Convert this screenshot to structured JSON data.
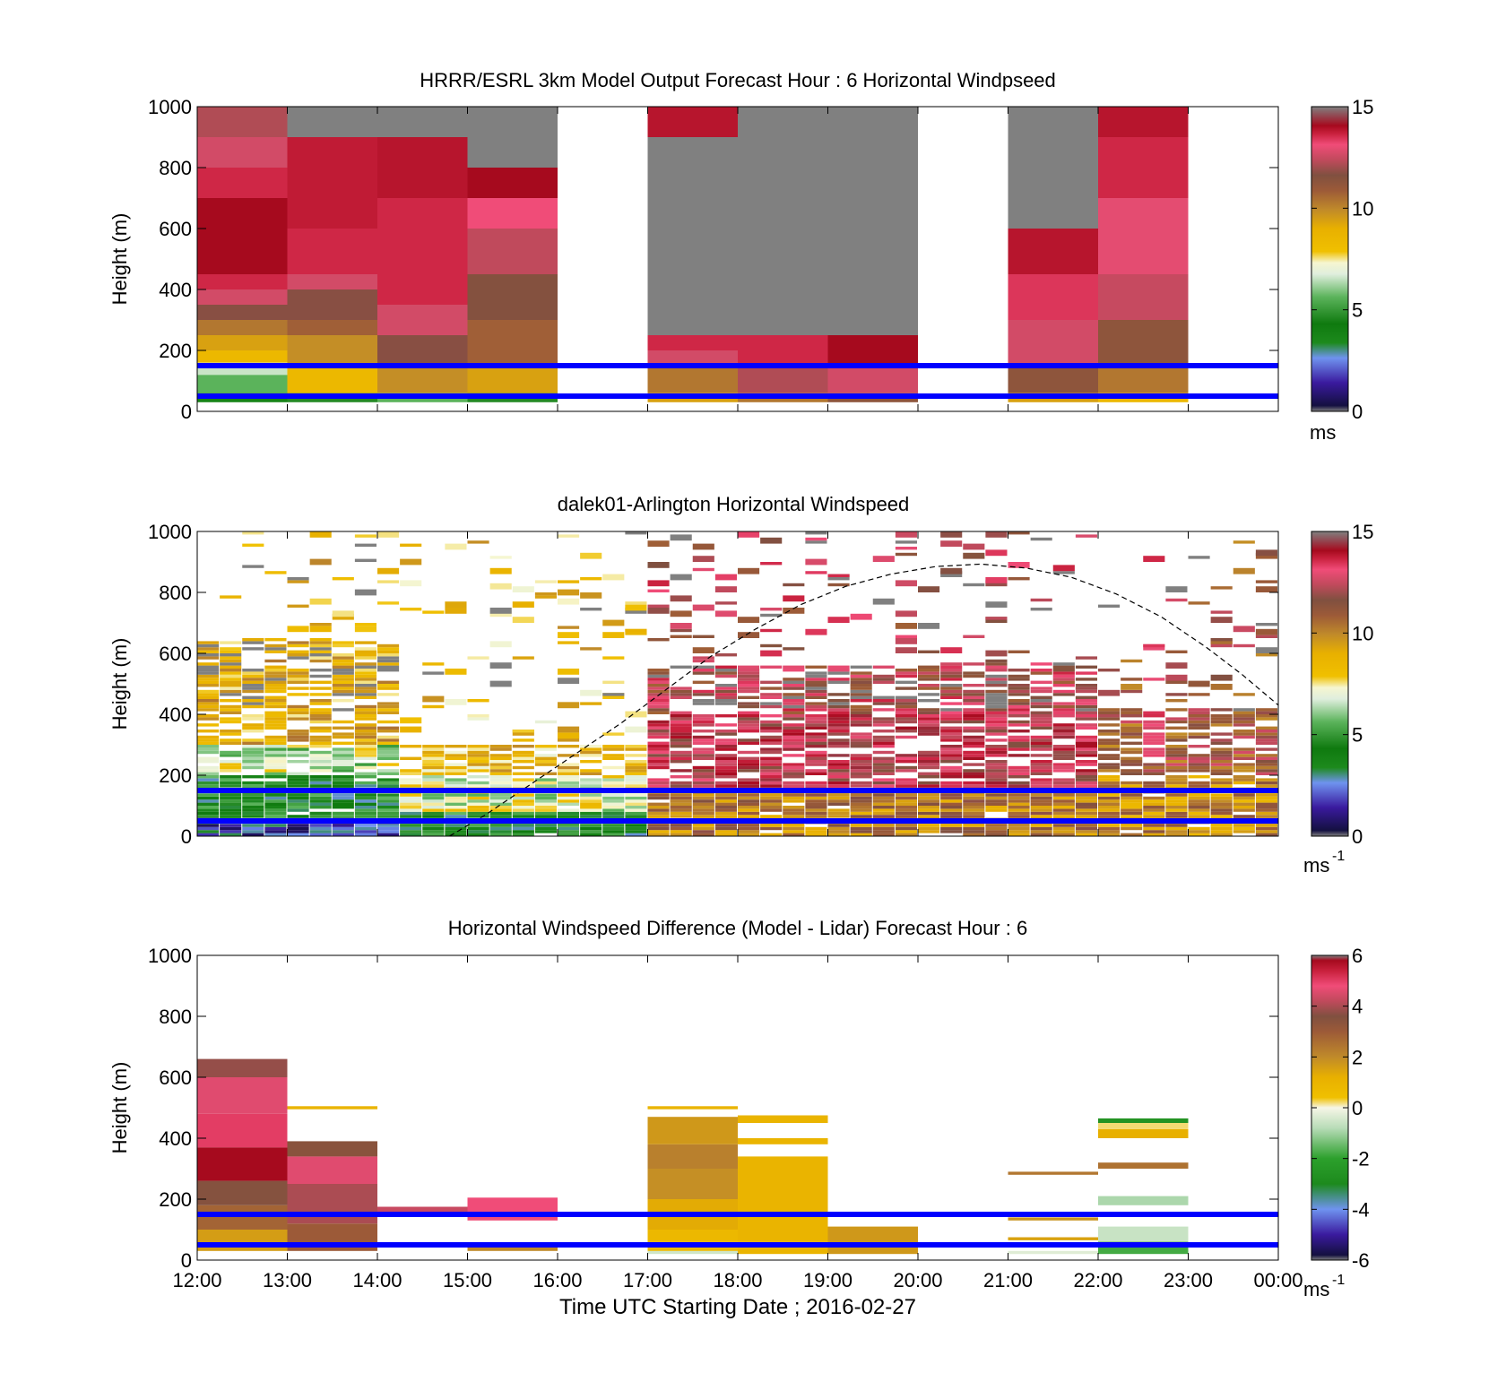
{
  "chart_data": [
    {
      "type": "heatmap",
      "title": "HRRR/ESRL 3km Model Output   Forecast Hour : 6 Horizontal Windpseed",
      "ylabel": "Height (m)",
      "xlabel": "",
      "x_range": [
        "12:00",
        "00:00"
      ],
      "ylim": [
        0,
        1000
      ],
      "yticks": [
        "0",
        "200",
        "400",
        "600",
        "800",
        "1000"
      ],
      "colorbar": {
        "min": 0,
        "max": 15,
        "ticks": [
          "0",
          "5",
          "10",
          "15"
        ],
        "unit": "ms"
      },
      "reference_lines_m": [
        150,
        50
      ],
      "reference_line_color": "#0000ff",
      "cells": [
        {
          "t0": 0,
          "t1": 1,
          "h0": 30,
          "h1": 60,
          "v": 4
        },
        {
          "t0": 0,
          "t1": 1,
          "h0": 60,
          "h1": 120,
          "v": 6
        },
        {
          "t0": 0,
          "t1": 1,
          "h0": 120,
          "h1": 160,
          "v": 7
        },
        {
          "t0": 0,
          "t1": 1,
          "h0": 160,
          "h1": 200,
          "v": 9
        },
        {
          "t0": 0,
          "t1": 1,
          "h0": 200,
          "h1": 250,
          "v": 10
        },
        {
          "t0": 0,
          "t1": 1,
          "h0": 250,
          "h1": 300,
          "v": 11
        },
        {
          "t0": 0,
          "t1": 1,
          "h0": 300,
          "h1": 350,
          "v": 12.5
        },
        {
          "t0": 0,
          "t1": 1,
          "h0": 350,
          "h1": 400,
          "v": 13.5
        },
        {
          "t0": 0,
          "t1": 1,
          "h0": 400,
          "h1": 450,
          "v": 14.5
        },
        {
          "t0": 0,
          "t1": 1,
          "h0": 450,
          "h1": 700,
          "v": 15
        },
        {
          "t0": 0,
          "t1": 1,
          "h0": 700,
          "h1": 800,
          "v": 14.5
        },
        {
          "t0": 0,
          "t1": 1,
          "h0": 800,
          "h1": 900,
          "v": 13.5
        },
        {
          "t0": 0,
          "t1": 1,
          "h0": 900,
          "h1": 1000,
          "v": 13
        },
        {
          "t0": 1,
          "t1": 2,
          "h0": 30,
          "h1": 60,
          "v": 5
        },
        {
          "t0": 1,
          "t1": 2,
          "h0": 60,
          "h1": 150,
          "v": 9
        },
        {
          "t0": 1,
          "t1": 2,
          "h0": 150,
          "h1": 250,
          "v": 10.5
        },
        {
          "t0": 1,
          "t1": 2,
          "h0": 250,
          "h1": 300,
          "v": 11.5
        },
        {
          "t0": 1,
          "t1": 2,
          "h0": 300,
          "h1": 400,
          "v": 12.5
        },
        {
          "t0": 1,
          "t1": 2,
          "h0": 400,
          "h1": 450,
          "v": 13.5
        },
        {
          "t0": 1,
          "t1": 2,
          "h0": 450,
          "h1": 600,
          "v": 14.5
        },
        {
          "t0": 1,
          "t1": 2,
          "h0": 600,
          "h1": 900,
          "v": 14.7
        },
        {
          "t0": 1,
          "t1": 2,
          "h0": 900,
          "h1": 1000,
          "v": 16
        },
        {
          "t0": 2,
          "t1": 3,
          "h0": 30,
          "h1": 60,
          "v": 6
        },
        {
          "t0": 2,
          "t1": 3,
          "h0": 60,
          "h1": 150,
          "v": 10.5
        },
        {
          "t0": 2,
          "t1": 3,
          "h0": 150,
          "h1": 250,
          "v": 12.5
        },
        {
          "t0": 2,
          "t1": 3,
          "h0": 250,
          "h1": 350,
          "v": 13.5
        },
        {
          "t0": 2,
          "t1": 3,
          "h0": 350,
          "h1": 700,
          "v": 14.5
        },
        {
          "t0": 2,
          "t1": 3,
          "h0": 700,
          "h1": 900,
          "v": 14.8
        },
        {
          "t0": 2,
          "t1": 3,
          "h0": 900,
          "h1": 1000,
          "v": 16
        },
        {
          "t0": 3,
          "t1": 4,
          "h0": 30,
          "h1": 60,
          "v": 5
        },
        {
          "t0": 3,
          "t1": 4,
          "h0": 60,
          "h1": 150,
          "v": 10
        },
        {
          "t0": 3,
          "t1": 4,
          "h0": 150,
          "h1": 300,
          "v": 11.5
        },
        {
          "t0": 3,
          "t1": 4,
          "h0": 300,
          "h1": 450,
          "v": 12.3
        },
        {
          "t0": 3,
          "t1": 4,
          "h0": 450,
          "h1": 600,
          "v": 13.2
        },
        {
          "t0": 3,
          "t1": 4,
          "h0": 600,
          "h1": 700,
          "v": 14
        },
        {
          "t0": 3,
          "t1": 4,
          "h0": 700,
          "h1": 800,
          "v": 15
        },
        {
          "t0": 3,
          "t1": 4,
          "h0": 800,
          "h1": 1000,
          "v": 16
        },
        {
          "t0": 5,
          "t1": 6,
          "h0": 30,
          "h1": 60,
          "v": 10
        },
        {
          "t0": 5,
          "t1": 6,
          "h0": 60,
          "h1": 150,
          "v": 11
        },
        {
          "t0": 5,
          "t1": 6,
          "h0": 150,
          "h1": 200,
          "v": 13.5
        },
        {
          "t0": 5,
          "t1": 6,
          "h0": 200,
          "h1": 250,
          "v": 14.5
        },
        {
          "t0": 5,
          "t1": 6,
          "h0": 250,
          "h1": 900,
          "v": 16
        },
        {
          "t0": 5,
          "t1": 6,
          "h0": 900,
          "h1": 1000,
          "v": 14.8
        },
        {
          "t0": 6,
          "t1": 7,
          "h0": 30,
          "h1": 60,
          "v": 11
        },
        {
          "t0": 6,
          "t1": 7,
          "h0": 60,
          "h1": 150,
          "v": 13
        },
        {
          "t0": 6,
          "t1": 7,
          "h0": 150,
          "h1": 250,
          "v": 14.5
        },
        {
          "t0": 6,
          "t1": 7,
          "h0": 250,
          "h1": 1000,
          "v": 16
        },
        {
          "t0": 7,
          "t1": 8,
          "h0": 30,
          "h1": 60,
          "v": 12
        },
        {
          "t0": 7,
          "t1": 8,
          "h0": 60,
          "h1": 150,
          "v": 13.5
        },
        {
          "t0": 7,
          "t1": 8,
          "h0": 150,
          "h1": 250,
          "v": 15
        },
        {
          "t0": 7,
          "t1": 8,
          "h0": 250,
          "h1": 1000,
          "v": 16
        },
        {
          "t0": 9,
          "t1": 10,
          "h0": 30,
          "h1": 60,
          "v": 10
        },
        {
          "t0": 9,
          "t1": 10,
          "h0": 60,
          "h1": 150,
          "v": 12
        },
        {
          "t0": 9,
          "t1": 10,
          "h0": 150,
          "h1": 300,
          "v": 13.5
        },
        {
          "t0": 9,
          "t1": 10,
          "h0": 300,
          "h1": 450,
          "v": 14.3
        },
        {
          "t0": 9,
          "t1": 10,
          "h0": 450,
          "h1": 600,
          "v": 14.8
        },
        {
          "t0": 9,
          "t1": 10,
          "h0": 600,
          "h1": 1000,
          "v": 16
        },
        {
          "t0": 10,
          "t1": 11,
          "h0": 30,
          "h1": 60,
          "v": 9
        },
        {
          "t0": 10,
          "t1": 11,
          "h0": 60,
          "h1": 150,
          "v": 11
        },
        {
          "t0": 10,
          "t1": 11,
          "h0": 150,
          "h1": 300,
          "v": 12
        },
        {
          "t0": 10,
          "t1": 11,
          "h0": 300,
          "h1": 450,
          "v": 13.3
        },
        {
          "t0": 10,
          "t1": 11,
          "h0": 450,
          "h1": 700,
          "v": 13.8
        },
        {
          "t0": 10,
          "t1": 11,
          "h0": 700,
          "h1": 900,
          "v": 14.5
        },
        {
          "t0": 10,
          "t1": 11,
          "h0": 900,
          "h1": 1000,
          "v": 14.8
        }
      ]
    },
    {
      "type": "heatmap",
      "title": "dalek01-Arlington  Horizontal Windspeed",
      "ylabel": "Height (m)",
      "xlabel": "",
      "x_range": [
        "12:00",
        "00:00"
      ],
      "ylim": [
        0,
        1000
      ],
      "yticks": [
        "0",
        "200",
        "400",
        "600",
        "800",
        "1000"
      ],
      "colorbar": {
        "min": 0,
        "max": 15,
        "ticks": [
          "0",
          "5",
          "10",
          "15"
        ],
        "unit": "ms",
        "unit_exponent": "-1"
      },
      "reference_lines_m": [
        150,
        50
      ],
      "reference_line_color": "#0000ff",
      "dashed_curve_style": "#000000",
      "dashed_curve_points": [
        {
          "t": 2.8,
          "h": 0
        },
        {
          "t": 3.2,
          "h": 70
        },
        {
          "t": 3.7,
          "h": 170
        },
        {
          "t": 4.2,
          "h": 270
        },
        {
          "t": 4.7,
          "h": 370
        },
        {
          "t": 5.2,
          "h": 480
        },
        {
          "t": 5.7,
          "h": 590
        },
        {
          "t": 6.2,
          "h": 680
        },
        {
          "t": 6.7,
          "h": 760
        },
        {
          "t": 7.2,
          "h": 820
        },
        {
          "t": 7.7,
          "h": 860
        },
        {
          "t": 8.2,
          "h": 885
        },
        {
          "t": 8.7,
          "h": 893
        },
        {
          "t": 9.2,
          "h": 880
        },
        {
          "t": 9.7,
          "h": 850
        },
        {
          "t": 10.2,
          "h": 795
        },
        {
          "t": 10.7,
          "h": 720
        },
        {
          "t": 11.2,
          "h": 620
        },
        {
          "t": 11.6,
          "h": 530
        },
        {
          "t": 12,
          "h": 430
        }
      ]
    },
    {
      "type": "heatmap",
      "title": "Horizontal Windspeed Difference (Model - Lidar) Forecast Hour : 6",
      "ylabel": "Height (m)",
      "xlabel": "Time UTC  Starting Date ; 2016-02-27",
      "x_ticks": [
        "12:00",
        "13:00",
        "14:00",
        "15:00",
        "16:00",
        "17:00",
        "18:00",
        "19:00",
        "20:00",
        "21:00",
        "22:00",
        "23:00",
        "00:00"
      ],
      "ylim": [
        0,
        1000
      ],
      "yticks": [
        "0",
        "200",
        "400",
        "600",
        "800",
        "1000"
      ],
      "colorbar": {
        "min": -6,
        "max": 6,
        "ticks": [
          "-6",
          "-4",
          "-2",
          "0",
          "2",
          "4",
          "6"
        ],
        "unit": "ms",
        "unit_exponent": "-1"
      },
      "reference_lines_m": [
        150,
        50
      ],
      "reference_line_color": "#0000ff",
      "cells": [
        {
          "t0": 0,
          "t1": 1,
          "h0": 30,
          "h1": 100,
          "v": 1.6
        },
        {
          "t0": 0,
          "t1": 1,
          "h0": 100,
          "h1": 180,
          "v": 2.8
        },
        {
          "t0": 0,
          "t1": 1,
          "h0": 180,
          "h1": 260,
          "v": 3.5
        },
        {
          "t0": 0,
          "t1": 1,
          "h0": 260,
          "h1": 370,
          "v": 5.8
        },
        {
          "t0": 0,
          "t1": 1,
          "h0": 370,
          "h1": 480,
          "v": 5
        },
        {
          "t0": 0,
          "t1": 1,
          "h0": 480,
          "h1": 600,
          "v": 4.6
        },
        {
          "t0": 0,
          "t1": 1,
          "h0": 600,
          "h1": 660,
          "v": 3.8
        },
        {
          "t0": 1,
          "t1": 2,
          "h0": 495,
          "h1": 505,
          "v": 1
        },
        {
          "t0": 1,
          "t1": 2,
          "h0": 30,
          "h1": 120,
          "v": 3
        },
        {
          "t0": 1,
          "t1": 2,
          "h0": 120,
          "h1": 250,
          "v": 4
        },
        {
          "t0": 1,
          "t1": 2,
          "h0": 250,
          "h1": 340,
          "v": 4.6
        },
        {
          "t0": 1,
          "t1": 2,
          "h0": 340,
          "h1": 390,
          "v": 3.4
        },
        {
          "t0": 2,
          "t1": 3,
          "h0": 155,
          "h1": 175,
          "v": 4.3
        },
        {
          "t0": 3,
          "t1": 4,
          "h0": 30,
          "h1": 45,
          "v": 2
        },
        {
          "t0": 3,
          "t1": 4,
          "h0": 130,
          "h1": 205,
          "v": 4.8
        },
        {
          "t0": 5,
          "t1": 6,
          "h0": 20,
          "h1": 30,
          "v": -0.5
        },
        {
          "t0": 5,
          "t1": 6,
          "h0": 30,
          "h1": 100,
          "v": 0.8
        },
        {
          "t0": 5,
          "t1": 6,
          "h0": 100,
          "h1": 200,
          "v": 1.3
        },
        {
          "t0": 5,
          "t1": 6,
          "h0": 200,
          "h1": 300,
          "v": 1.9
        },
        {
          "t0": 5,
          "t1": 6,
          "h0": 300,
          "h1": 380,
          "v": 2.2
        },
        {
          "t0": 5,
          "t1": 6,
          "h0": 380,
          "h1": 470,
          "v": 1.7
        },
        {
          "t0": 5,
          "t1": 6,
          "h0": 495,
          "h1": 505,
          "v": 1
        },
        {
          "t0": 6,
          "t1": 7,
          "h0": 20,
          "h1": 340,
          "v": 1
        },
        {
          "t0": 6,
          "t1": 7,
          "h0": 380,
          "h1": 400,
          "v": 1
        },
        {
          "t0": 6,
          "t1": 7,
          "h0": 450,
          "h1": 475,
          "v": 1
        },
        {
          "t0": 7,
          "t1": 8,
          "h0": 20,
          "h1": 110,
          "v": 1.7
        },
        {
          "t0": 9,
          "t1": 10,
          "h0": 20,
          "h1": 30,
          "v": -0.3
        },
        {
          "t0": 9,
          "t1": 10,
          "h0": 65,
          "h1": 75,
          "v": 1.5
        },
        {
          "t0": 9,
          "t1": 10,
          "h0": 130,
          "h1": 140,
          "v": 1.8
        },
        {
          "t0": 9,
          "t1": 10,
          "h0": 280,
          "h1": 290,
          "v": 2.4
        },
        {
          "t0": 10,
          "t1": 11,
          "h0": 20,
          "h1": 40,
          "v": -1.8
        },
        {
          "t0": 10,
          "t1": 11,
          "h0": 40,
          "h1": 60,
          "v": -2.8
        },
        {
          "t0": 10,
          "t1": 11,
          "h0": 60,
          "h1": 110,
          "v": -0.6
        },
        {
          "t0": 10,
          "t1": 11,
          "h0": 180,
          "h1": 210,
          "v": -0.9
        },
        {
          "t0": 10,
          "t1": 11,
          "h0": 300,
          "h1": 320,
          "v": 2.5
        },
        {
          "t0": 10,
          "t1": 11,
          "h0": 400,
          "h1": 430,
          "v": 1.2
        },
        {
          "t0": 10,
          "t1": 11,
          "h0": 430,
          "h1": 450,
          "v": 0.2
        },
        {
          "t0": 10,
          "t1": 11,
          "h0": 450,
          "h1": 465,
          "v": -2.6
        }
      ]
    }
  ]
}
